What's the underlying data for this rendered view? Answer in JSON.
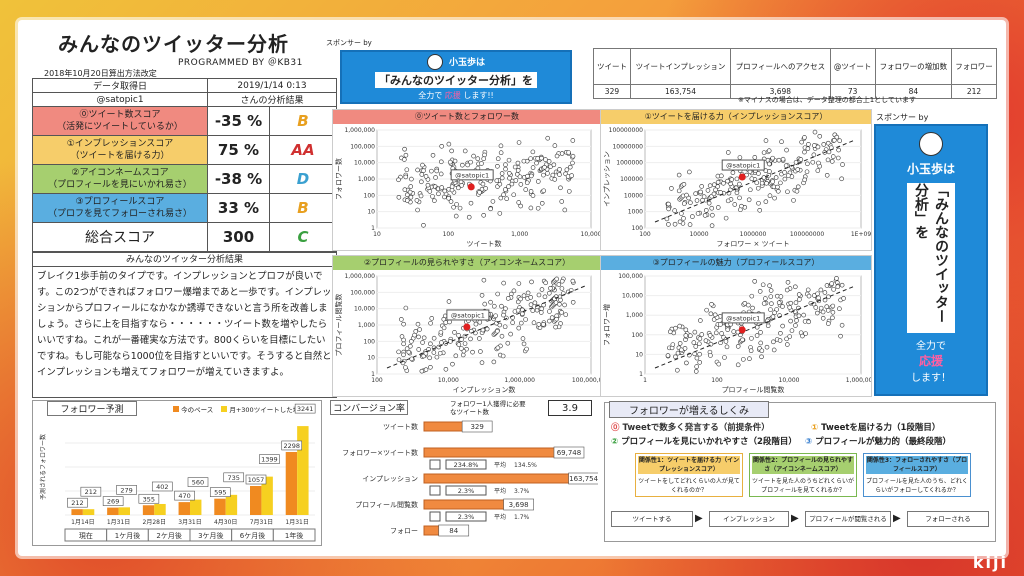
{
  "header": {
    "title": "みんなのツイッター分析",
    "programmed_by": "PROGRAMMED BY ＠KB31",
    "date_note": "2018年10月20日算出方法改定"
  },
  "score_table": {
    "date_label": "データ取得日",
    "date_value": "2019/1/14 0:13",
    "user": "@satopic1",
    "result_label": "さんの分析結果",
    "rows": [
      {
        "line1": "⓪ツイート数スコア",
        "line2": "（活発にツイートしているか）",
        "pct": "-35 %",
        "grade": "B",
        "bg": "#f08a80",
        "grade_color": "#e8a020"
      },
      {
        "line1": "①インプレッションスコア",
        "line2": "（ツイートを届ける力）",
        "pct": "75 %",
        "grade": "AA",
        "bg": "#f6cd6a",
        "grade_color": "#d03030"
      },
      {
        "line1": "②アイコンネームスコア",
        "line2": "（プロフィールを見にいかれ易さ）",
        "pct": "-38 %",
        "grade": "D",
        "bg": "#a6cf6f",
        "grade_color": "#3aa0d0"
      },
      {
        "line1": "③プロフィールスコア",
        "line2": "（プロフを見てフォローされ易さ）",
        "pct": "33 %",
        "grade": "B",
        "bg": "#5aaee0",
        "grade_color": "#e8a020"
      }
    ],
    "total_label": "総合スコア",
    "total_value": "300",
    "total_grade": "C",
    "total_grade_color": "#3aa040"
  },
  "result": {
    "heading": "みんなのツイッター分析結果",
    "body": "ブレイク1歩手前のタイプです。インプレッションとプロフが良いです。この2つができればフォロワー爆増まであと一歩です。インプレッションからプロフィールになかなか誘導できないと言う所を改善しましょう。さらに上を目指すなら・・・・・・ツイート数を増やしたらいいですね。これが一番確実な方法です。800くらいを目標にしたいですね。もし可能なら1000位を目指すといいです。そうすると自然とインプレッションも増えてフォロワーが増えていきますよ。"
  },
  "sponsor": {
    "label": "スポンサー by",
    "label2": "スポンサー by",
    "name": "小玉歩",
    "wa": "は",
    "name_suffix": "小玉歩は",
    "headline": "「みんなのツイッター分析」を",
    "tagline_a": "全力で",
    "tagline_b": "応援",
    "tagline_c": "します!!",
    "v_line1": "「みんなのツイッター分析」を",
    "v_line2": "全力で",
    "v_line3": "応援",
    "v_line4": "します！"
  },
  "stats": {
    "headers": [
      "ツイート",
      "ツイートインプレッション",
      "プロフィールへのアクセス",
      "@ツイート",
      "フォロワーの増加数",
      "フォロワー"
    ],
    "values": [
      "329",
      "163,754",
      "3,698",
      "73",
      "84",
      "212"
    ],
    "note": "※マイナスの場合は、データ整理の都合上1としています"
  },
  "charts": {
    "c0": {
      "title": "⓪ツイート数とフォロワー数",
      "ylabel": "フォロワー数",
      "xlabel": "ツイート数",
      "yticks": [
        "1,000,000",
        "100,000",
        "10,000",
        "1,000",
        "100",
        "10",
        "1"
      ],
      "xticks": [
        "10",
        "100",
        "1,000",
        "10,000"
      ],
      "label": "@satopic1"
    },
    "c1": {
      "title": "①ツイートを届ける力（インプレッションスコア）",
      "ylabel": "インプレッション",
      "xlabel": "フォロワー × ツイート",
      "yticks": [
        "100000000",
        "10000000",
        "1000000",
        "100000",
        "10000",
        "1000",
        "100"
      ],
      "xticks": [
        "100",
        "10000",
        "1000000",
        "100000000",
        "1E+09"
      ],
      "label": "@satopic1"
    },
    "c2": {
      "title": "②プロフィールの見られやすさ（アイコンネームスコア）",
      "ylabel": "プロフィール閲覧数",
      "xlabel": "インプレッション数",
      "yticks": [
        "1,000,000",
        "100,000",
        "10,000",
        "1,000",
        "100",
        "10",
        "1"
      ],
      "xticks": [
        "100",
        "10,000",
        "1,000,000",
        "100,000,000"
      ],
      "label": "@satopic1"
    },
    "c3": {
      "title": "③プロフィールの魅力（プロフィールスコア）",
      "ylabel": "フォロワー増",
      "xlabel": "プロフィール閲覧数",
      "yticks": [
        "100,000",
        "10,000",
        "1,000",
        "100",
        "10",
        "1"
      ],
      "xticks": [
        "1",
        "100",
        "10,000",
        "1,000,000"
      ],
      "label": "@satopic1"
    }
  },
  "forecast": {
    "title": "フォロワー予測",
    "legend": [
      "今のペース",
      "月+300ツイートした場合"
    ],
    "ylabel": "予測されるフォロワー数",
    "dates": [
      "1月14日",
      "1月31日",
      "2月28日",
      "3月31日",
      "4月30日",
      "7月31日",
      "1月31日"
    ],
    "periods": [
      "現在",
      "1ケ月後",
      "2ケ月後",
      "3ケ月後",
      "6ケ月後",
      "1年後"
    ],
    "series_a": [
      212,
      269,
      355,
      470,
      595,
      1057,
      2298
    ],
    "series_b": [
      212,
      279,
      402,
      560,
      735,
      1399,
      3241
    ],
    "labels_a": [
      "212",
      "269",
      "355",
      "470",
      "595",
      "1057",
      "2298"
    ],
    "labels_b": [
      "212",
      "279",
      "402",
      "560",
      "735",
      "1399",
      "3241"
    ],
    "first_label": "212",
    "first_label2": "212",
    "colors": [
      "#f08a20",
      "#f6d020"
    ]
  },
  "conversion": {
    "title": "コンバージョン率",
    "required_label": "フォロワー1人獲得に必要なツイート数",
    "required_value": "3.9",
    "rows": [
      {
        "label": "ツイート数",
        "value": "329",
        "num": 329
      },
      {
        "label": "フォロワー×ツイート数",
        "value": "69,748",
        "num": 69748
      },
      {
        "label": "インプレッション",
        "value": "163,754",
        "num": 163754
      },
      {
        "label": "プロフィール閲覧数",
        "value": "3,698",
        "num": 3698
      },
      {
        "label": "フォロー",
        "value": "84",
        "num": 84
      }
    ],
    "rates": [
      {
        "rate": "234.8%",
        "avg_label": "平均",
        "avg": "134.5%"
      },
      {
        "rate": "2.3%",
        "avg_label": "平均",
        "avg": "3.7%"
      },
      {
        "rate": "2.3%",
        "avg_label": "平均",
        "avg": "1.7%"
      }
    ]
  },
  "mechanism": {
    "title": "フォロワーが増えるしくみ",
    "p0": "Tweetで数多く発言する（前提条件）",
    "p1": "Tweetを届ける力（1段階目）",
    "p2": "プロフィールを見にいかれやすさ（2段階目）",
    "p3": "プロフィールが魅力的（最終段階）",
    "cards": [
      {
        "title": "関係性1：ツイートを届ける力（インプレッションスコア）",
        "body": "ツイートをしてどれくらいの人が見てくれるのか？"
      },
      {
        "title": "関係性2：プロフィールの見られやすさ（アイコンネームスコア）",
        "body": "ツイートを見た人のうちどれくらいがプロフィールを見てくれるか？"
      },
      {
        "title": "関係性3：フォローされやすさ（プロフィールスコア）",
        "body": "プロフィールを見た人のうち、どれくらいがフォローしてくれるか？"
      }
    ],
    "flow": [
      "ツイートする",
      "インプレッション",
      "プロフィールが閲覧される",
      "フォローされる"
    ]
  },
  "brand": "kiji"
}
